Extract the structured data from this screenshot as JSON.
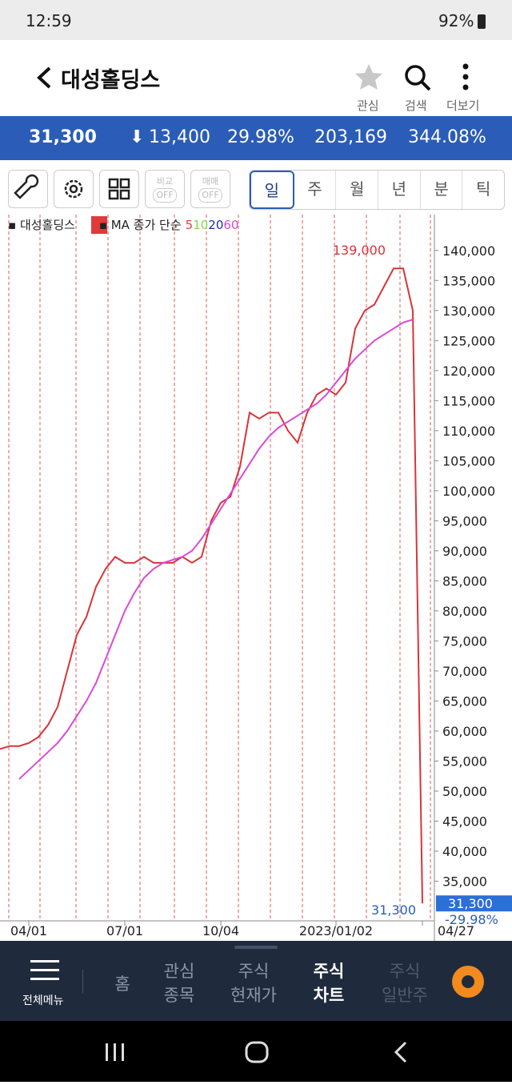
{
  "status_bar": {
    "time": "12:59",
    "battery": "92%"
  },
  "header": {
    "title": "대성홀딩스",
    "actions": [
      "관심",
      "검색",
      "더보기"
    ]
  },
  "quote": {
    "price": "31,300",
    "change": "13,400",
    "rate": "29.98%",
    "volume": "203,169",
    "volume_rate": "344.08%"
  },
  "toolbar": {
    "toggles": [
      {
        "label": "비교",
        "state": "OFF"
      },
      {
        "label": "매매",
        "state": "OFF"
      }
    ],
    "periods": [
      "일",
      "주",
      "월",
      "년",
      "분",
      "틱"
    ]
  },
  "chart_data": {
    "type": "line",
    "legend_name": "대성홀딩스",
    "legend_period": "일",
    "ma_label": "MA 종가 단순",
    "ma_periods": [
      {
        "label": "5",
        "color": "#e8413a"
      },
      {
        "label": "10",
        "color": "#7ed957"
      },
      {
        "label": "20",
        "color": "#1f2fa0"
      },
      {
        "label": "60",
        "color": "#d94ad6"
      }
    ],
    "categories": [
      null,
      null,
      null,
      "04/01",
      null,
      null,
      null,
      null,
      null,
      null,
      null,
      null,
      null,
      "07/01",
      null,
      null,
      null,
      null,
      null,
      null,
      null,
      null,
      null,
      "10/04",
      null,
      null,
      null,
      null,
      null,
      null,
      null,
      null,
      null,
      null,
      null,
      "2023/01/02",
      null,
      null,
      null,
      null,
      null,
      null,
      null,
      null,
      "04/27"
    ],
    "series": [
      {
        "name": "종가",
        "color": "#d8343a",
        "values": [
          57000,
          57500,
          57500,
          58000,
          59000,
          61000,
          64000,
          70000,
          76000,
          79000,
          84000,
          87000,
          89000,
          88000,
          88000,
          89000,
          88000,
          88000,
          88000,
          89000,
          88000,
          89000,
          95000,
          98000,
          99000,
          104000,
          113000,
          112000,
          113000,
          113000,
          110000,
          108000,
          113000,
          116000,
          117000,
          116000,
          118000,
          127000,
          130000,
          131000,
          134000,
          137000,
          137000,
          130000,
          31300
        ]
      },
      {
        "name": "60",
        "color": "#d94ad6",
        "values": [
          null,
          null,
          52000,
          53500,
          55000,
          56500,
          58000,
          60000,
          62500,
          65000,
          68000,
          72000,
          76000,
          80000,
          83000,
          85500,
          87000,
          88000,
          88500,
          89000,
          90000,
          92000,
          94500,
          97000,
          99500,
          102000,
          104500,
          107000,
          109000,
          110500,
          111500,
          112500,
          113500,
          114500,
          116000,
          118000,
          120000,
          122000,
          123500,
          125000,
          126000,
          127000,
          128000,
          128500,
          null
        ]
      }
    ],
    "ylim": [
      28400,
      145700
    ],
    "yticks": [
      {
        "value": 140000,
        "label": "140,000"
      },
      {
        "value": 135000,
        "label": "135,000"
      },
      {
        "value": 130000,
        "label": "130,000"
      },
      {
        "value": 125000,
        "label": "125,000"
      },
      {
        "value": 120000,
        "label": "120,000"
      },
      {
        "value": 115000,
        "label": "115,000"
      },
      {
        "value": 110000,
        "label": "110,000"
      },
      {
        "value": 105000,
        "label": "105,000"
      },
      {
        "value": 100000,
        "label": "100,000"
      },
      {
        "value": 95000,
        "label": "95,000"
      },
      {
        "value": 90000,
        "label": "90,000"
      },
      {
        "value": 85000,
        "label": "85,000"
      },
      {
        "value": 80000,
        "label": "80,000"
      },
      {
        "value": 75000,
        "label": "75,000"
      },
      {
        "value": 70000,
        "label": "70,000"
      },
      {
        "value": 65000,
        "label": "65,000"
      },
      {
        "value": 60000,
        "label": "60,000"
      },
      {
        "value": 55000,
        "label": "55,000"
      },
      {
        "value": 50000,
        "label": "50,000"
      },
      {
        "value": 45000,
        "label": "45,000"
      },
      {
        "value": 40000,
        "label": "40,000"
      },
      {
        "value": 35000,
        "label": "35,000"
      }
    ],
    "high_label": "139,000",
    "last_label": "31,300",
    "last_box": "31,300",
    "last_rate": "-29.98%"
  },
  "bottom_nav": {
    "menu": "전체메뉴",
    "items": [
      [
        "홈"
      ],
      [
        "관심",
        "종목"
      ],
      [
        "주식",
        "현재가"
      ],
      [
        "주식",
        "차트"
      ],
      [
        "주식",
        "일반주"
      ]
    ]
  }
}
